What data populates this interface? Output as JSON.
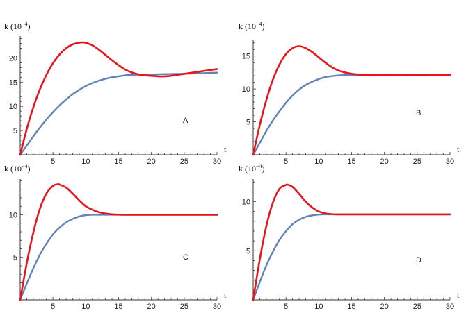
{
  "chart_data": [
    {
      "type": "line",
      "panel_label": "A",
      "ylabel_main": "k (10",
      "ylabel_exp": "−4",
      "ylabel_close": ")",
      "xlabel": "t",
      "xlim": [
        0,
        30
      ],
      "ylim": [
        0,
        24.5
      ],
      "x_ticks": [
        "5",
        "10",
        "15",
        "20",
        "25",
        "30"
      ],
      "y_ticks": [
        "5",
        "10",
        "15",
        "20"
      ],
      "series": [
        {
          "color": "#e8141a",
          "x": [
            0,
            1,
            2,
            3,
            4,
            5,
            6,
            7,
            8,
            9,
            9.5,
            10,
            11,
            12,
            13,
            14,
            15,
            16,
            17,
            18,
            19,
            20,
            21,
            22,
            23,
            24,
            25,
            26,
            27,
            28,
            29,
            30
          ],
          "y": [
            0,
            5.3,
            9.8,
            13.5,
            16.5,
            18.9,
            20.7,
            22.0,
            22.8,
            23.15,
            23.2,
            23.1,
            22.6,
            21.7,
            20.6,
            19.5,
            18.5,
            17.6,
            17.0,
            16.6,
            16.4,
            16.3,
            16.2,
            16.2,
            16.3,
            16.5,
            16.7,
            16.9,
            17.1,
            17.3,
            17.5,
            17.7
          ]
        },
        {
          "color": "#5f82b8",
          "x": [
            0,
            1,
            2,
            3,
            4,
            5,
            6,
            7,
            8,
            9,
            10,
            11,
            12,
            13,
            14,
            15,
            16,
            17,
            18,
            19,
            20,
            22,
            24,
            26,
            28,
            30
          ],
          "y": [
            0,
            1.9,
            3.8,
            5.6,
            7.3,
            8.8,
            10.2,
            11.4,
            12.5,
            13.4,
            14.2,
            14.8,
            15.3,
            15.7,
            16.0,
            16.2,
            16.4,
            16.5,
            16.55,
            16.6,
            16.6,
            16.65,
            16.7,
            16.75,
            16.85,
            16.95
          ]
        }
      ]
    },
    {
      "type": "line",
      "panel_label": "B",
      "ylabel_main": "k (10",
      "ylabel_exp": "−4",
      "ylabel_close": ")",
      "xlabel": "t",
      "xlim": [
        0,
        30
      ],
      "ylim": [
        0,
        17.5
      ],
      "x_ticks": [
        "5",
        "10",
        "15",
        "20",
        "25",
        "30"
      ],
      "y_ticks": [
        "5",
        "10",
        "15"
      ],
      "series": [
        {
          "color": "#e8141a",
          "x": [
            0,
            1,
            2,
            3,
            4,
            5,
            6,
            7,
            8,
            9,
            10,
            11,
            12,
            13,
            14,
            15,
            16,
            17,
            18,
            20,
            22,
            25,
            30
          ],
          "y": [
            0,
            4.5,
            8.3,
            11.4,
            13.7,
            15.3,
            16.2,
            16.5,
            16.2,
            15.6,
            14.8,
            14.0,
            13.3,
            12.8,
            12.5,
            12.3,
            12.2,
            12.15,
            12.1,
            12.1,
            12.1,
            12.15,
            12.15
          ]
        },
        {
          "color": "#5f82b8",
          "x": [
            0,
            1,
            2,
            3,
            4,
            5,
            6,
            7,
            8,
            9,
            10,
            11,
            12,
            13,
            14,
            15,
            16,
            18,
            20,
            25,
            30
          ],
          "y": [
            0,
            1.8,
            3.6,
            5.2,
            6.6,
            7.9,
            9.0,
            9.9,
            10.6,
            11.1,
            11.5,
            11.8,
            11.95,
            12.05,
            12.1,
            12.1,
            12.1,
            12.1,
            12.1,
            12.15,
            12.15
          ]
        }
      ]
    },
    {
      "type": "line",
      "panel_label": "C",
      "ylabel_main": "k (10",
      "ylabel_exp": "−4",
      "ylabel_close": ")",
      "xlabel": "t",
      "xlim": [
        0,
        30
      ],
      "ylim": [
        0,
        14.2
      ],
      "x_ticks": [
        "5",
        "10",
        "15",
        "20",
        "25",
        "30"
      ],
      "y_ticks": [
        "5",
        "10"
      ],
      "series": [
        {
          "color": "#e8141a",
          "x": [
            0,
            1,
            2,
            3,
            4,
            5,
            5.8,
            6,
            7,
            8,
            9,
            10,
            11,
            12,
            13,
            14,
            15,
            16,
            18,
            20,
            25,
            30
          ],
          "y": [
            0,
            4.3,
            7.9,
            10.7,
            12.5,
            13.4,
            13.6,
            13.55,
            13.2,
            12.5,
            11.7,
            11.0,
            10.6,
            10.3,
            10.15,
            10.05,
            10.02,
            10.0,
            10.0,
            10.0,
            10.0,
            10.0
          ]
        },
        {
          "color": "#5f82b8",
          "x": [
            0,
            1,
            2,
            3,
            4,
            5,
            6,
            7,
            8,
            9,
            10,
            11,
            12,
            14,
            16,
            20,
            25,
            30
          ],
          "y": [
            0,
            1.9,
            3.7,
            5.3,
            6.6,
            7.7,
            8.5,
            9.1,
            9.5,
            9.8,
            9.95,
            10.0,
            10.0,
            10.0,
            10.0,
            10.0,
            10.0,
            10.0
          ]
        }
      ]
    },
    {
      "type": "line",
      "panel_label": "D",
      "ylabel_main": "k (10",
      "ylabel_exp": "−4",
      "ylabel_close": ")",
      "xlabel": "t",
      "xlim": [
        0,
        30
      ],
      "ylim": [
        0,
        12.3
      ],
      "x_ticks": [
        "5",
        "10",
        "15",
        "20",
        "25",
        "30"
      ],
      "y_ticks": [
        "5",
        "10"
      ],
      "series": [
        {
          "color": "#e8141a",
          "x": [
            0,
            1,
            2,
            3,
            4,
            5,
            5.3,
            6,
            7,
            8,
            9,
            10,
            11,
            12,
            13,
            14,
            15,
            16,
            18,
            20,
            25,
            30
          ],
          "y": [
            0,
            4.1,
            7.5,
            9.9,
            11.3,
            11.7,
            11.72,
            11.5,
            10.8,
            10.0,
            9.4,
            9.0,
            8.8,
            8.72,
            8.7,
            8.7,
            8.7,
            8.7,
            8.7,
            8.7,
            8.7,
            8.7
          ]
        },
        {
          "color": "#5f82b8",
          "x": [
            0,
            1,
            2,
            3,
            4,
            5,
            6,
            7,
            8,
            9,
            10,
            11,
            12,
            14,
            16,
            20,
            25,
            30
          ],
          "y": [
            0,
            1.8,
            3.5,
            4.9,
            6.1,
            7.0,
            7.7,
            8.15,
            8.45,
            8.6,
            8.68,
            8.7,
            8.7,
            8.7,
            8.7,
            8.7,
            8.7,
            8.7
          ]
        }
      ]
    }
  ]
}
